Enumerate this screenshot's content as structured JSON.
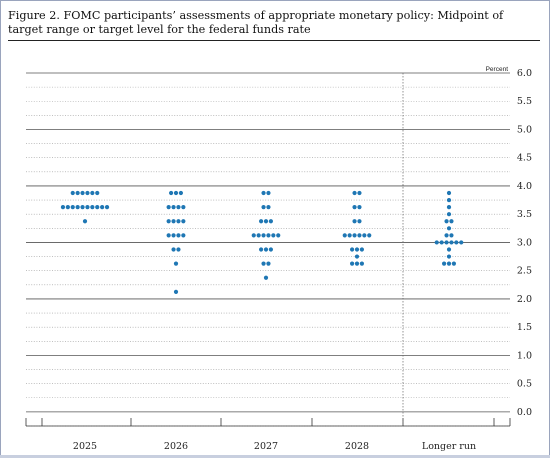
{
  "figure": {
    "title": "Figure 2. FOMC participants’ assessments of appropriate monetary policy: Midpoint of target range or target level for the federal funds rate"
  },
  "chart_data": {
    "type": "scatter",
    "title": "Figure 2. FOMC participants’ assessments of appropriate monetary policy: Midpoint of target range or target level for the federal funds rate",
    "unit_label": "Percent",
    "categories": [
      "2025",
      "2026",
      "2027",
      "2028",
      "Longer run"
    ],
    "ylim": [
      -0.25,
      6.0
    ],
    "y_ticks": [
      "0.0",
      "0.5",
      "1.0",
      "1.5",
      "2.0",
      "2.5",
      "3.0",
      "3.5",
      "4.0",
      "4.5",
      "5.0",
      "5.5",
      "6.0"
    ],
    "y_axis_side": "right",
    "grid": true,
    "dot_color": "#1f77b4",
    "distributions": [
      {
        "category": "2025",
        "points": [
          {
            "y": 3.875,
            "count": 6
          },
          {
            "y": 3.625,
            "count": 10
          },
          {
            "y": 3.375,
            "count": 1
          }
        ]
      },
      {
        "category": "2026",
        "points": [
          {
            "y": 3.875,
            "count": 3
          },
          {
            "y": 3.625,
            "count": 4
          },
          {
            "y": 3.375,
            "count": 4
          },
          {
            "y": 3.125,
            "count": 4
          },
          {
            "y": 2.875,
            "count": 2
          },
          {
            "y": 2.625,
            "count": 1
          },
          {
            "y": 2.125,
            "count": 1
          }
        ]
      },
      {
        "category": "2027",
        "points": [
          {
            "y": 3.875,
            "count": 2
          },
          {
            "y": 3.625,
            "count": 2
          },
          {
            "y": 3.375,
            "count": 3
          },
          {
            "y": 3.125,
            "count": 6
          },
          {
            "y": 2.875,
            "count": 3
          },
          {
            "y": 2.625,
            "count": 2
          },
          {
            "y": 2.375,
            "count": 1
          }
        ]
      },
      {
        "category": "2028",
        "points": [
          {
            "y": 3.875,
            "count": 2
          },
          {
            "y": 3.625,
            "count": 2
          },
          {
            "y": 3.375,
            "count": 2
          },
          {
            "y": 3.125,
            "count": 6
          },
          {
            "y": 2.875,
            "count": 3
          },
          {
            "y": 2.75,
            "count": 1
          },
          {
            "y": 2.625,
            "count": 3
          }
        ]
      },
      {
        "category": "Longer run",
        "points": [
          {
            "y": 3.875,
            "count": 1
          },
          {
            "y": 3.75,
            "count": 1
          },
          {
            "y": 3.625,
            "count": 1
          },
          {
            "y": 3.5,
            "count": 1
          },
          {
            "y": 3.375,
            "count": 2
          },
          {
            "y": 3.25,
            "count": 1
          },
          {
            "y": 3.125,
            "count": 2
          },
          {
            "y": 3.0,
            "count": 6
          },
          {
            "y": 2.875,
            "count": 1
          },
          {
            "y": 2.75,
            "count": 1
          },
          {
            "y": 2.625,
            "count": 3
          }
        ]
      }
    ]
  }
}
